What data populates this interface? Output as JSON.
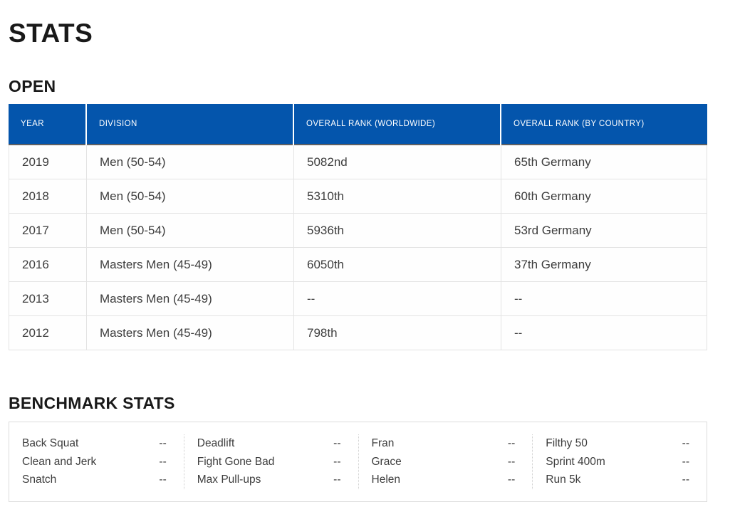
{
  "page": {
    "title": "STATS",
    "open_section_title": "OPEN",
    "benchmark_section_title": "BENCHMARK STATS"
  },
  "colors": {
    "header_blue": "#0455ac",
    "header_border_dark": "#5f6062",
    "row_border_light": "#e3e3e3",
    "heading_text": "#191919",
    "body_text": "#3d3d3d"
  },
  "open_table": {
    "columns": [
      "YEAR",
      "DIVISION",
      "OVERALL RANK (WORLDWIDE)",
      "OVERALL RANK (BY COUNTRY)"
    ],
    "rows": [
      {
        "year": "2019",
        "division": "Men (50-54)",
        "worldwide_rank": "5082nd",
        "country_rank": "65th Germany"
      },
      {
        "year": "2018",
        "division": "Men (50-54)",
        "worldwide_rank": "5310th",
        "country_rank": "60th Germany"
      },
      {
        "year": "2017",
        "division": "Men (50-54)",
        "worldwide_rank": "5936th",
        "country_rank": "53rd Germany"
      },
      {
        "year": "2016",
        "division": "Masters Men (45-49)",
        "worldwide_rank": "6050th",
        "country_rank": "37th Germany"
      },
      {
        "year": "2013",
        "division": "Masters Men (45-49)",
        "worldwide_rank": "--",
        "country_rank": "--"
      },
      {
        "year": "2012",
        "division": "Masters Men (45-49)",
        "worldwide_rank": "798th",
        "country_rank": "--"
      }
    ]
  },
  "benchmark_stats": {
    "columns": [
      [
        {
          "label": "Back Squat",
          "value": "--"
        },
        {
          "label": "Clean and Jerk",
          "value": "--"
        },
        {
          "label": "Snatch",
          "value": "--"
        }
      ],
      [
        {
          "label": "Deadlift",
          "value": "--"
        },
        {
          "label": "Fight Gone Bad",
          "value": "--"
        },
        {
          "label": "Max Pull-ups",
          "value": "--"
        }
      ],
      [
        {
          "label": "Fran",
          "value": "--"
        },
        {
          "label": "Grace",
          "value": "--"
        },
        {
          "label": "Helen",
          "value": "--"
        }
      ],
      [
        {
          "label": "Filthy 50",
          "value": "--"
        },
        {
          "label": "Sprint 400m",
          "value": "--"
        },
        {
          "label": "Run 5k",
          "value": "--"
        }
      ]
    ]
  }
}
